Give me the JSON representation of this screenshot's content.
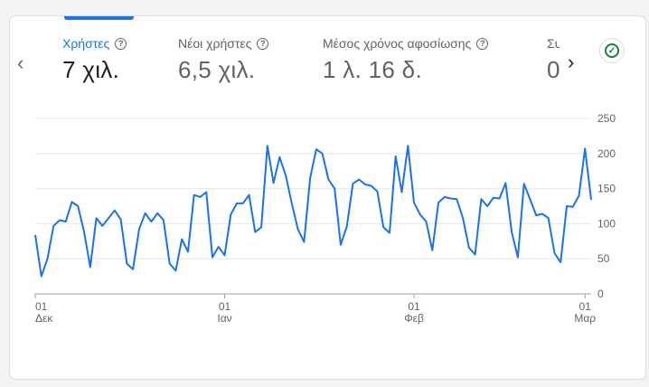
{
  "nav": {
    "prev_icon": "chevron-left-icon",
    "next_icon": "chevron-right-icon"
  },
  "metrics": [
    {
      "label": "Χρήστες",
      "value": "7 χιλ.",
      "active": true
    },
    {
      "label": "Νέοι χρήστες",
      "value": "6,5 χιλ.",
      "active": false
    },
    {
      "label": "Μέσος χρόνος αφοσίωσης",
      "value": "1 λ. 16 δ.",
      "active": false
    },
    {
      "label": "Συ",
      "value": "0",
      "active": false
    }
  ],
  "status_icon": "check-circle-icon",
  "colors": {
    "accent": "#1a73e8",
    "line": "#1a73e8",
    "status": "#188038"
  },
  "chart_data": {
    "type": "line",
    "ylim": [
      0,
      250
    ],
    "y_ticks": [
      0,
      50,
      100,
      150,
      200,
      250
    ],
    "x_ticks": [
      {
        "index": 0,
        "day": "01",
        "month": "Δεκ"
      },
      {
        "index": 31,
        "day": "01",
        "month": "Ιαν"
      },
      {
        "index": 62,
        "day": "01",
        "month": "Φεβ"
      },
      {
        "index": 90,
        "day": "01",
        "month": "Μαρ"
      }
    ],
    "grid": true,
    "series": [
      {
        "values": [
          84,
          25,
          50,
          97,
          105,
          103,
          131,
          125,
          88,
          38,
          108,
          97,
          108,
          119,
          106,
          43,
          35,
          92,
          115,
          103,
          115,
          105,
          43,
          33,
          78,
          60,
          141,
          138,
          145,
          52,
          67,
          55,
          113,
          129,
          129,
          141,
          88,
          95,
          211,
          158,
          195,
          169,
          129,
          92,
          74,
          165,
          206,
          200,
          163,
          150,
          70,
          96,
          157,
          163,
          156,
          154,
          146,
          95,
          87,
          196,
          145,
          211,
          130,
          113,
          103,
          62,
          130,
          138,
          136,
          135,
          108,
          66,
          56,
          135,
          125,
          137,
          136,
          158,
          88,
          52,
          157,
          135,
          112,
          114,
          108,
          58,
          45,
          125,
          124,
          140,
          207,
          134
        ]
      }
    ]
  }
}
